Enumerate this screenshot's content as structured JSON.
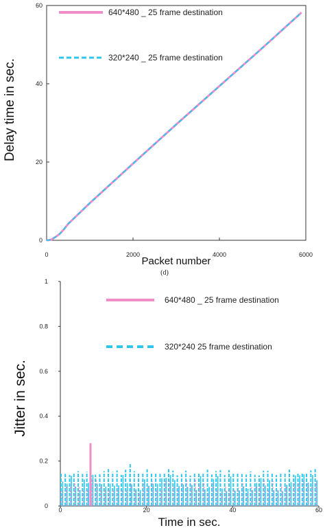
{
  "colors": {
    "pink": "#f08cc8",
    "cyan": "#2ec6ec",
    "axis": "#333333"
  },
  "chart_data": [
    {
      "type": "line",
      "caption": "(d)",
      "xlabel": "Packet number",
      "ylabel": "Delay time in sec.",
      "xlim": [
        0,
        6000
      ],
      "ylim": [
        0,
        60
      ],
      "xticks": [
        0,
        2000,
        4000,
        6000
      ],
      "yticks": [
        0,
        20,
        40,
        60
      ],
      "legend_placement": "top-left",
      "series": [
        {
          "name": "640*480 _ 25 frame destination",
          "color": "#f08cc8",
          "style": "solid",
          "x": [
            0,
            100,
            200,
            300,
            400,
            500,
            1000,
            2000,
            3000,
            4000,
            5000,
            5900
          ],
          "y": [
            0,
            0.1,
            0.8,
            1.6,
            2.8,
            4.2,
            9.5,
            19.6,
            29.6,
            39.4,
            49.2,
            58.2
          ]
        },
        {
          "name": "320*240 _ 25 frame destination",
          "color": "#2ec6ec",
          "style": "dashed",
          "x": [
            0,
            100,
            200,
            300,
            400,
            500,
            1000,
            2000,
            3000,
            4000,
            5000,
            5900
          ],
          "y": [
            0,
            0.1,
            0.8,
            1.6,
            2.8,
            4.2,
            9.5,
            19.6,
            29.6,
            39.4,
            49.2,
            58.2
          ]
        }
      ]
    },
    {
      "type": "line",
      "xlabel": "Time in sec.",
      "ylabel": "Jitter in sec.",
      "xlim": [
        0,
        60
      ],
      "ylim": [
        0,
        1
      ],
      "xticks": [
        0,
        20,
        40,
        60
      ],
      "yticks": [
        0,
        0.2,
        0.4,
        0.6,
        0.8,
        1
      ],
      "ytick_labels": [
        "0",
        "0.2",
        "0.4",
        "0.6",
        "0.8",
        "1"
      ],
      "legend_placement": "top-center",
      "series": [
        {
          "name": "640*480 _ 25 frame destination",
          "color": "#f08cc8",
          "style": "solid",
          "note_spike": {
            "x": 7,
            "y": 0.28
          },
          "typical_peak": 0.12
        },
        {
          "name": "320*240    25 frame destination",
          "color": "#2ec6ec",
          "style": "dashed",
          "typical_peak": 0.16,
          "max_peak": 0.19
        }
      ],
      "burst_period_sec": 1.0
    }
  ]
}
